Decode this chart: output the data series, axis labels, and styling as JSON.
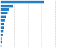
{
  "values": [
    3200,
    900,
    620,
    480,
    380,
    310,
    270,
    230,
    190,
    160,
    120,
    90,
    70
  ],
  "bar_colors": [
    "#2980c4",
    "#2980c4",
    "#2980c4",
    "#2980c4",
    "#2980c4",
    "#2980c4",
    "#2980c4",
    "#2980c4",
    "#2980c4",
    "#2980c4",
    "#aaaaaa",
    "#2980c4",
    "#2980c4"
  ],
  "background_color": "#ffffff",
  "grid_color": "#cccccc",
  "xlim": [
    0,
    4900
  ],
  "bar_height": 0.72,
  "grid_lines": [
    1000,
    2000,
    3000,
    4000
  ]
}
